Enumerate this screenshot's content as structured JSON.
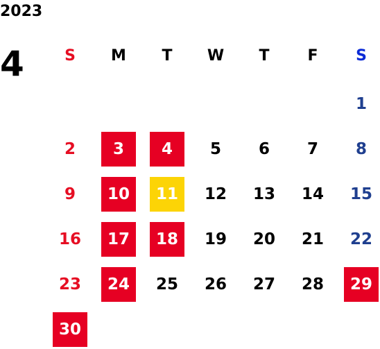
{
  "year": "2023",
  "month": "4",
  "weekdays": [
    "S",
    "M",
    "T",
    "W",
    "T",
    "F",
    "S"
  ],
  "colors": {
    "sunday": "#e60e23",
    "saturday": "#1f3f8f",
    "holiday_red": "#e60023",
    "highlight_yellow": "#fcd406"
  },
  "days": [
    {
      "day": "1",
      "col": 6,
      "row": 0,
      "type": "sat",
      "mark": ""
    },
    {
      "day": "2",
      "col": 0,
      "row": 1,
      "type": "sun",
      "mark": ""
    },
    {
      "day": "3",
      "col": 1,
      "row": 1,
      "type": "",
      "mark": "red"
    },
    {
      "day": "4",
      "col": 2,
      "row": 1,
      "type": "",
      "mark": "red"
    },
    {
      "day": "5",
      "col": 3,
      "row": 1,
      "type": "",
      "mark": ""
    },
    {
      "day": "6",
      "col": 4,
      "row": 1,
      "type": "",
      "mark": ""
    },
    {
      "day": "7",
      "col": 5,
      "row": 1,
      "type": "",
      "mark": ""
    },
    {
      "day": "8",
      "col": 6,
      "row": 1,
      "type": "sat",
      "mark": ""
    },
    {
      "day": "9",
      "col": 0,
      "row": 2,
      "type": "sun",
      "mark": ""
    },
    {
      "day": "10",
      "col": 1,
      "row": 2,
      "type": "",
      "mark": "red"
    },
    {
      "day": "11",
      "col": 2,
      "row": 2,
      "type": "",
      "mark": "yellow"
    },
    {
      "day": "12",
      "col": 3,
      "row": 2,
      "type": "",
      "mark": ""
    },
    {
      "day": "13",
      "col": 4,
      "row": 2,
      "type": "",
      "mark": ""
    },
    {
      "day": "14",
      "col": 5,
      "row": 2,
      "type": "",
      "mark": ""
    },
    {
      "day": "15",
      "col": 6,
      "row": 2,
      "type": "sat",
      "mark": ""
    },
    {
      "day": "16",
      "col": 0,
      "row": 3,
      "type": "sun",
      "mark": ""
    },
    {
      "day": "17",
      "col": 1,
      "row": 3,
      "type": "",
      "mark": "red"
    },
    {
      "day": "18",
      "col": 2,
      "row": 3,
      "type": "",
      "mark": "red"
    },
    {
      "day": "19",
      "col": 3,
      "row": 3,
      "type": "",
      "mark": ""
    },
    {
      "day": "20",
      "col": 4,
      "row": 3,
      "type": "",
      "mark": ""
    },
    {
      "day": "21",
      "col": 5,
      "row": 3,
      "type": "",
      "mark": ""
    },
    {
      "day": "22",
      "col": 6,
      "row": 3,
      "type": "sat",
      "mark": ""
    },
    {
      "day": "23",
      "col": 0,
      "row": 4,
      "type": "sun",
      "mark": ""
    },
    {
      "day": "24",
      "col": 1,
      "row": 4,
      "type": "",
      "mark": "red"
    },
    {
      "day": "25",
      "col": 2,
      "row": 4,
      "type": "",
      "mark": ""
    },
    {
      "day": "26",
      "col": 3,
      "row": 4,
      "type": "",
      "mark": ""
    },
    {
      "day": "27",
      "col": 4,
      "row": 4,
      "type": "",
      "mark": ""
    },
    {
      "day": "28",
      "col": 5,
      "row": 4,
      "type": "",
      "mark": ""
    },
    {
      "day": "29",
      "col": 6,
      "row": 4,
      "type": "",
      "mark": "red"
    },
    {
      "day": "30",
      "col": 0,
      "row": 5,
      "type": "",
      "mark": "red"
    }
  ]
}
